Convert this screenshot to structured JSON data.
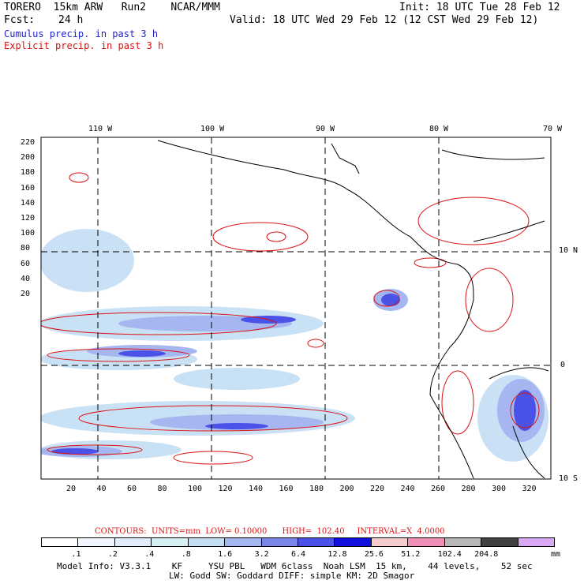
{
  "header": {
    "model": "TORERO  15km ARW   Run2    NCAR/MMM",
    "init": "Init: 18 UTC Tue 28 Feb 12",
    "fcst_label": "Fcst:",
    "fcst_value": "24 h",
    "valid": "Valid: 18 UTC Wed 29 Feb 12 (12 CST Wed 29 Feb 12)",
    "line_cumulus": "Cumulus precip. in past 3 h",
    "line_explicit": "Explicit precip. in past 3 h"
  },
  "colors": {
    "cumulus": "#2222cc",
    "explicit": "#dd1111",
    "grid": "#000000"
  },
  "map": {
    "longitude_labels": [
      "110 W",
      "100 W",
      "90 W",
      "80 W",
      "70 W"
    ],
    "latitude_labels": [
      "10 N",
      "0",
      "10 S"
    ],
    "y_ticks": [
      "220",
      "200",
      "180",
      "160",
      "140",
      "120",
      "100",
      "80",
      "60",
      "40",
      "20"
    ],
    "x_ticks": [
      "20",
      "40",
      "60",
      "80",
      "100",
      "120",
      "140",
      "160",
      "180",
      "200",
      "220",
      "240",
      "260",
      "280",
      "300",
      "320"
    ]
  },
  "contours_text": "CONTOURS:  UNITS=mm  LOW= 0.10000      HIGH=  102.40     INTERVAL=X  4.0000",
  "colorbar": {
    "labels": [
      ".1",
      ".2",
      ".4",
      ".8",
      "1.6",
      "3.2",
      "6.4",
      "12.8",
      "25.6",
      "51.2",
      "102.4",
      "204.8"
    ],
    "unit": "mm",
    "colors": [
      "#ffffff",
      "#f2f6ff",
      "#e2eefc",
      "#d6f0f6",
      "#c4def4",
      "#a6b6f0",
      "#7c86e8",
      "#4a52e8",
      "#1010dc",
      "#f6cccc",
      "#f090b8",
      "#b8b8b8",
      "#404040",
      "#d8a8f4"
    ]
  },
  "footer": {
    "line1": "Model Info: V3.3.1    KF     YSU PBL   WDM 6class  Noah LSM  15 km,    44 levels,    52 sec",
    "line2": "LW: Godd SW: Goddard DIFF: simple KM: 2D Smagor"
  }
}
